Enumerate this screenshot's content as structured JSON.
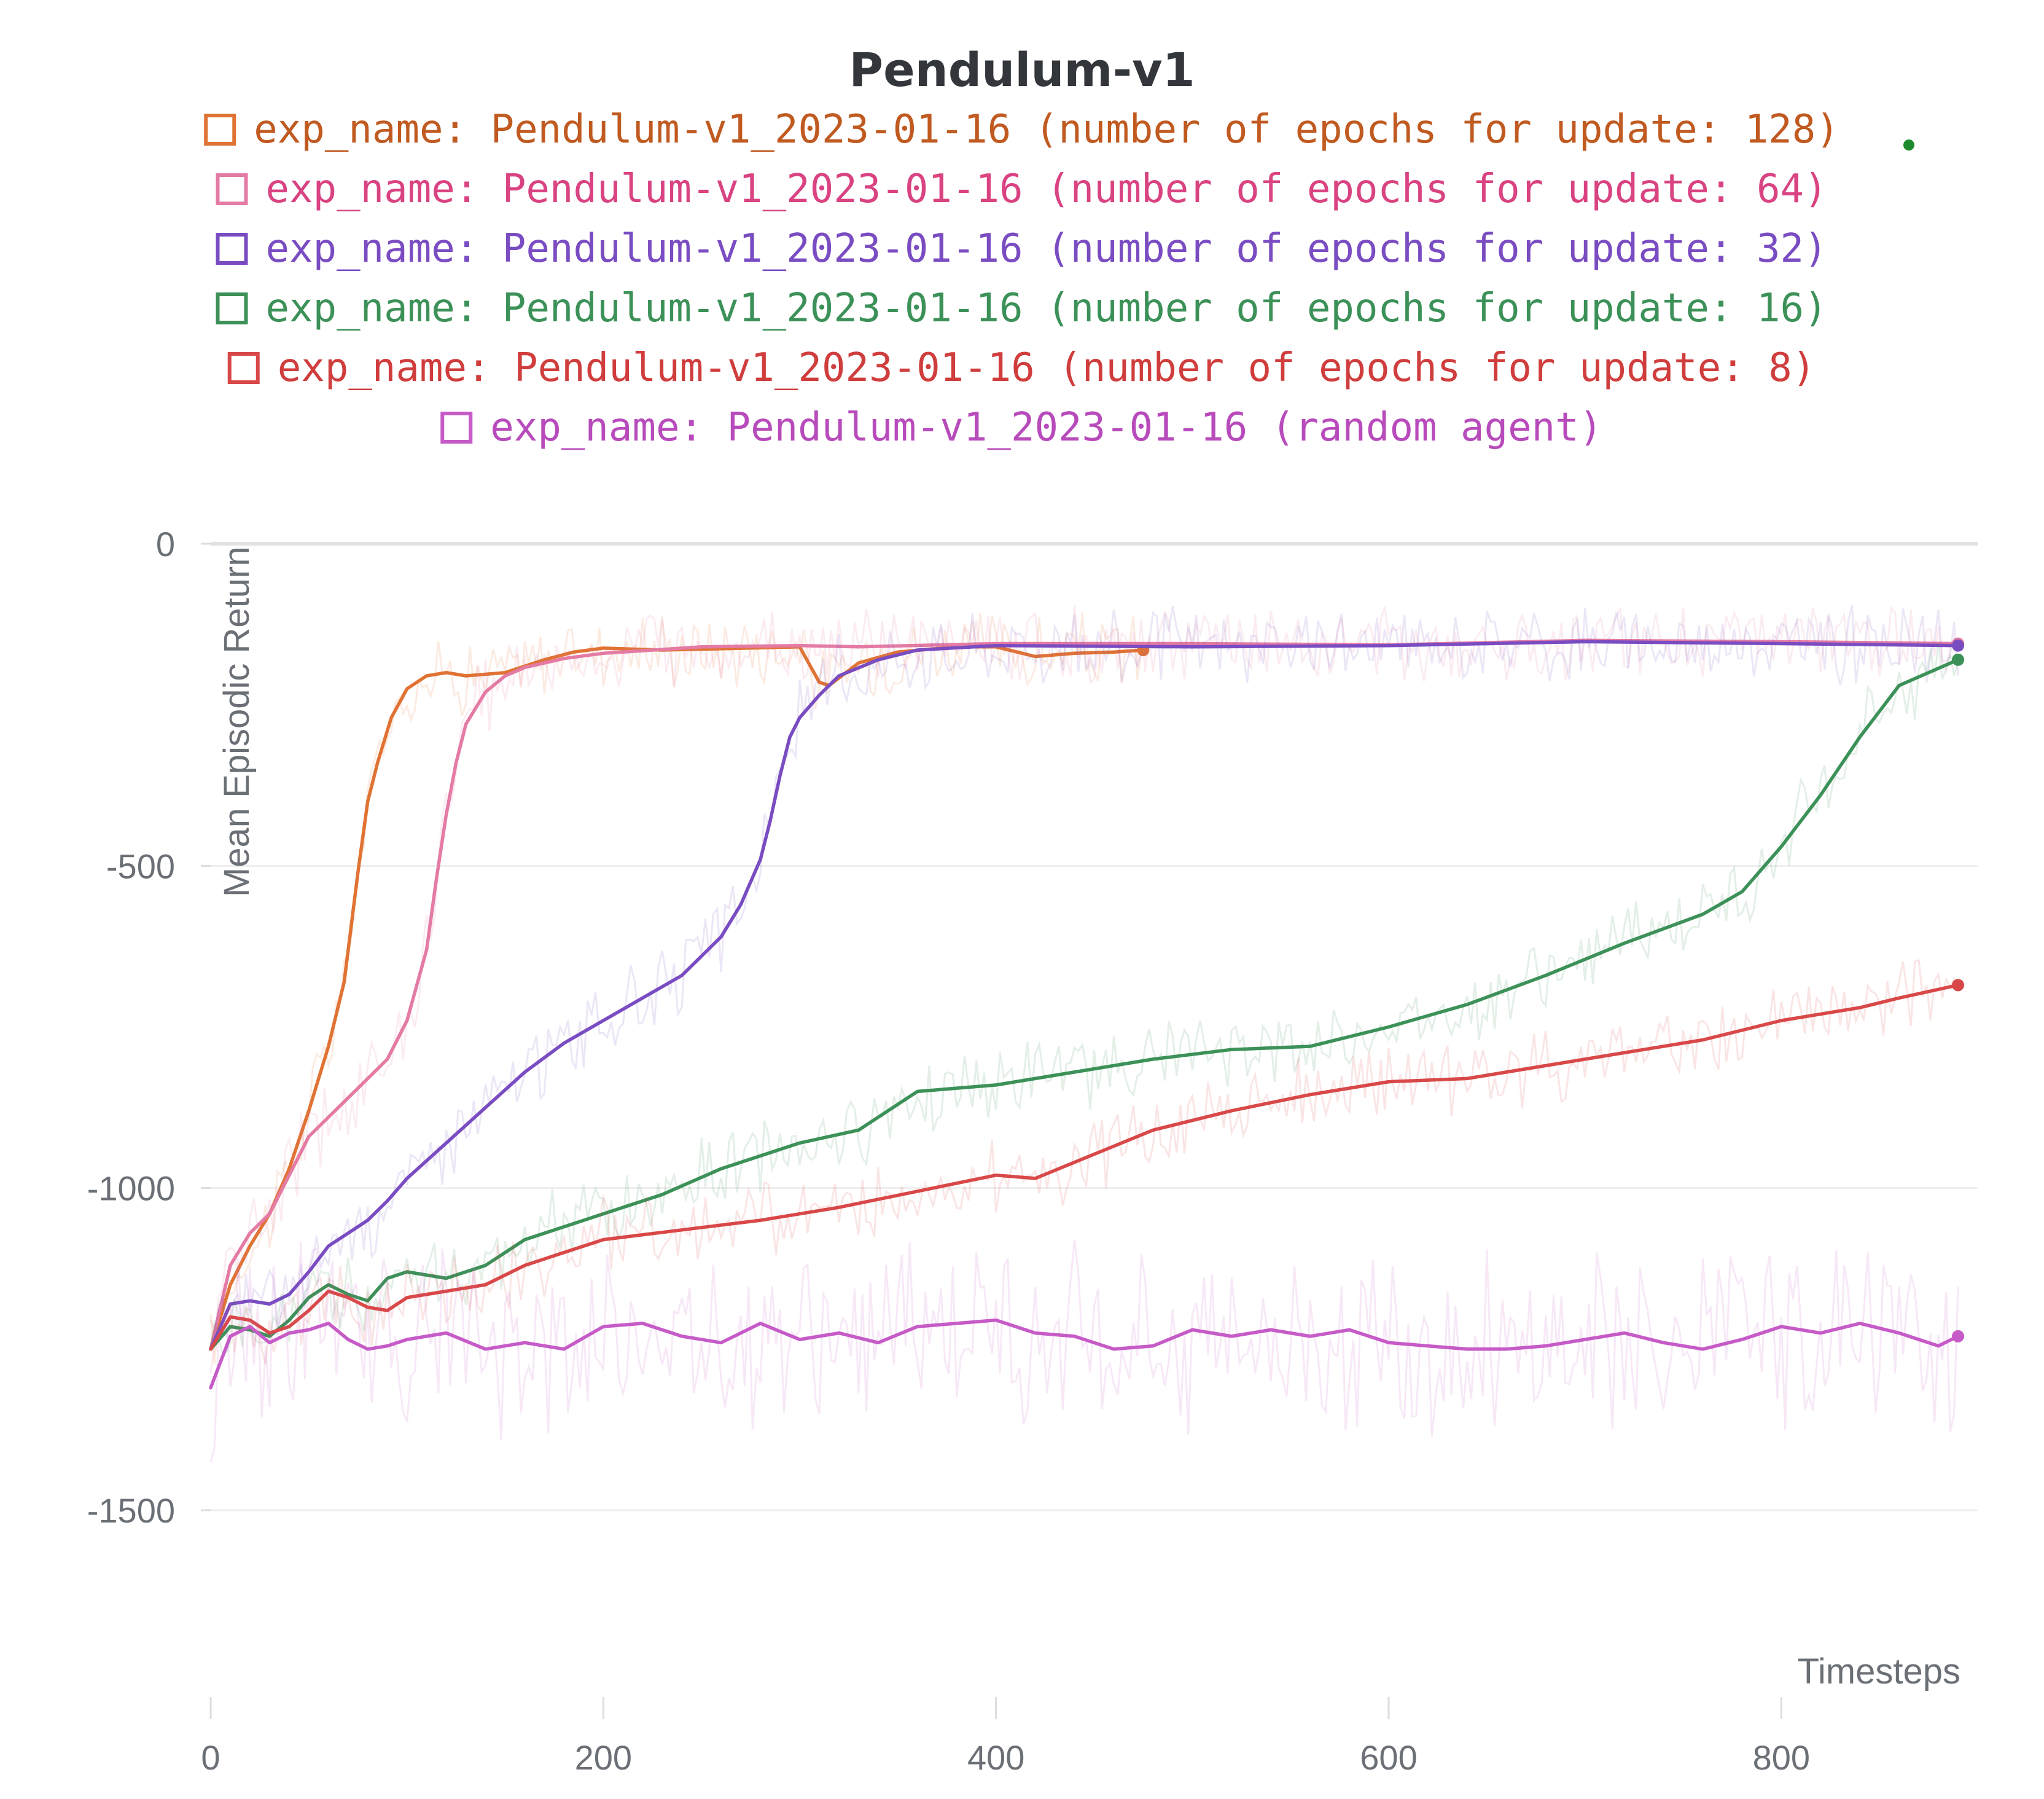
{
  "chart_data": {
    "type": "line",
    "title": "Pendulum-v1",
    "xlabel": "Timesteps",
    "ylabel": "Mean Episodic Return",
    "xlim": [
      0,
      900
    ],
    "ylim": [
      -1500,
      0
    ],
    "x_ticks": [
      "0",
      "200",
      "400",
      "600",
      "800"
    ],
    "y_ticks": [
      "0",
      "-500",
      "-1000",
      "-1500"
    ],
    "grid": true,
    "legend_position": "top",
    "series": [
      {
        "name": "exp_name: Pendulum-v1_2023-01-16 (number of epochs for update: 128)",
        "color": "#e07333",
        "text_color": "#c05a20",
        "x": [
          0,
          10,
          20,
          30,
          40,
          50,
          60,
          68,
          75,
          80,
          85,
          92,
          100,
          110,
          120,
          130,
          150,
          170,
          185,
          200,
          230,
          260,
          300,
          310,
          315,
          330,
          350,
          380,
          400,
          420,
          440,
          460,
          475
        ],
        "y": [
          -1250,
          -1150,
          -1090,
          -1040,
          -970,
          -880,
          -780,
          -680,
          -510,
          -400,
          -340,
          -270,
          -225,
          -205,
          -200,
          -205,
          -200,
          -180,
          -168,
          -162,
          -165,
          -163,
          -160,
          -215,
          -220,
          -185,
          -168,
          -160,
          -160,
          -175,
          -170,
          -168,
          -165
        ]
      },
      {
        "name": "exp_name: Pendulum-v1_2023-01-16 (number of epochs for update: 64)",
        "color": "#e47ba4",
        "text_color": "#d94381",
        "x": [
          0,
          10,
          20,
          30,
          40,
          50,
          60,
          70,
          80,
          90,
          100,
          110,
          115,
          120,
          125,
          130,
          140,
          150,
          160,
          180,
          200,
          250,
          300,
          330,
          400,
          500,
          600,
          700,
          800,
          890
        ],
        "y": [
          -1250,
          -1120,
          -1070,
          -1040,
          -980,
          -920,
          -890,
          -860,
          -830,
          -800,
          -740,
          -630,
          -520,
          -420,
          -340,
          -280,
          -230,
          -205,
          -192,
          -178,
          -170,
          -160,
          -158,
          -160,
          -155,
          -155,
          -157,
          -150,
          -152,
          -155
        ]
      },
      {
        "name": "exp_name: Pendulum-v1_2023-01-16 (number of epochs for update: 32)",
        "color": "#7a4cc2",
        "text_color": "#7a4cc2",
        "x": [
          0,
          10,
          20,
          30,
          40,
          50,
          60,
          70,
          80,
          90,
          100,
          120,
          140,
          160,
          180,
          200,
          220,
          240,
          260,
          270,
          280,
          285,
          290,
          295,
          300,
          310,
          320,
          340,
          360,
          400,
          500,
          600,
          700,
          800,
          890
        ],
        "y": [
          -1250,
          -1180,
          -1175,
          -1180,
          -1165,
          -1130,
          -1090,
          -1070,
          -1050,
          -1020,
          -985,
          -930,
          -875,
          -820,
          -775,
          -740,
          -705,
          -670,
          -610,
          -560,
          -490,
          -430,
          -360,
          -300,
          -270,
          -235,
          -205,
          -180,
          -165,
          -158,
          -160,
          -158,
          -152,
          -155,
          -158
        ]
      },
      {
        "name": "exp_name: Pendulum-v1_2023-01-16 (number of epochs for update: 16)",
        "color": "#3c9158",
        "text_color": "#3c9158",
        "x": [
          0,
          10,
          20,
          30,
          40,
          50,
          60,
          70,
          80,
          90,
          100,
          120,
          140,
          160,
          180,
          200,
          230,
          260,
          300,
          330,
          360,
          400,
          440,
          480,
          520,
          560,
          600,
          640,
          680,
          720,
          760,
          780,
          800,
          820,
          840,
          860,
          890
        ],
        "y": [
          -1250,
          -1215,
          -1220,
          -1230,
          -1205,
          -1170,
          -1150,
          -1165,
          -1175,
          -1140,
          -1130,
          -1140,
          -1120,
          -1080,
          -1060,
          -1040,
          -1010,
          -970,
          -930,
          -910,
          -850,
          -840,
          -820,
          -800,
          -785,
          -780,
          -750,
          -715,
          -670,
          -620,
          -575,
          -540,
          -470,
          -390,
          -300,
          -220,
          -180
        ]
      },
      {
        "name": "exp_name: Pendulum-v1_2023-01-16 (number of epochs for update: 8)",
        "color": "#d94848",
        "text_color": "#d03d3d",
        "x": [
          0,
          10,
          20,
          30,
          40,
          50,
          60,
          70,
          80,
          90,
          100,
          120,
          140,
          160,
          180,
          200,
          240,
          280,
          320,
          360,
          400,
          420,
          440,
          460,
          480,
          520,
          560,
          600,
          640,
          680,
          720,
          760,
          800,
          840,
          860,
          890
        ],
        "y": [
          -1250,
          -1200,
          -1205,
          -1225,
          -1215,
          -1190,
          -1160,
          -1170,
          -1185,
          -1190,
          -1170,
          -1160,
          -1150,
          -1120,
          -1100,
          -1080,
          -1065,
          -1050,
          -1030,
          -1005,
          -980,
          -985,
          -960,
          -935,
          -910,
          -880,
          -855,
          -835,
          -830,
          -810,
          -790,
          -770,
          -740,
          -720,
          -705,
          -685
        ]
      },
      {
        "name": "exp_name: Pendulum-v1_2023-01-16 (random agent)",
        "color": "#c65bc8",
        "text_color": "#b84bbb",
        "x": [
          0,
          10,
          20,
          30,
          40,
          50,
          60,
          70,
          80,
          90,
          100,
          120,
          140,
          160,
          180,
          200,
          220,
          240,
          260,
          280,
          300,
          320,
          340,
          360,
          380,
          400,
          420,
          440,
          460,
          480,
          500,
          520,
          540,
          560,
          580,
          600,
          620,
          640,
          660,
          680,
          700,
          720,
          740,
          760,
          780,
          800,
          820,
          840,
          860,
          880,
          890
        ],
        "y": [
          -1310,
          -1230,
          -1215,
          -1240,
          -1225,
          -1220,
          -1210,
          -1235,
          -1250,
          -1245,
          -1235,
          -1225,
          -1250,
          -1240,
          -1250,
          -1215,
          -1210,
          -1230,
          -1240,
          -1210,
          -1235,
          -1225,
          -1240,
          -1215,
          -1210,
          -1205,
          -1225,
          -1230,
          -1250,
          -1245,
          -1220,
          -1230,
          -1220,
          -1230,
          -1220,
          -1240,
          -1245,
          -1250,
          -1250,
          -1245,
          -1235,
          -1225,
          -1240,
          -1250,
          -1235,
          -1215,
          -1225,
          -1210,
          -1225,
          -1245,
          -1230
        ]
      }
    ]
  }
}
